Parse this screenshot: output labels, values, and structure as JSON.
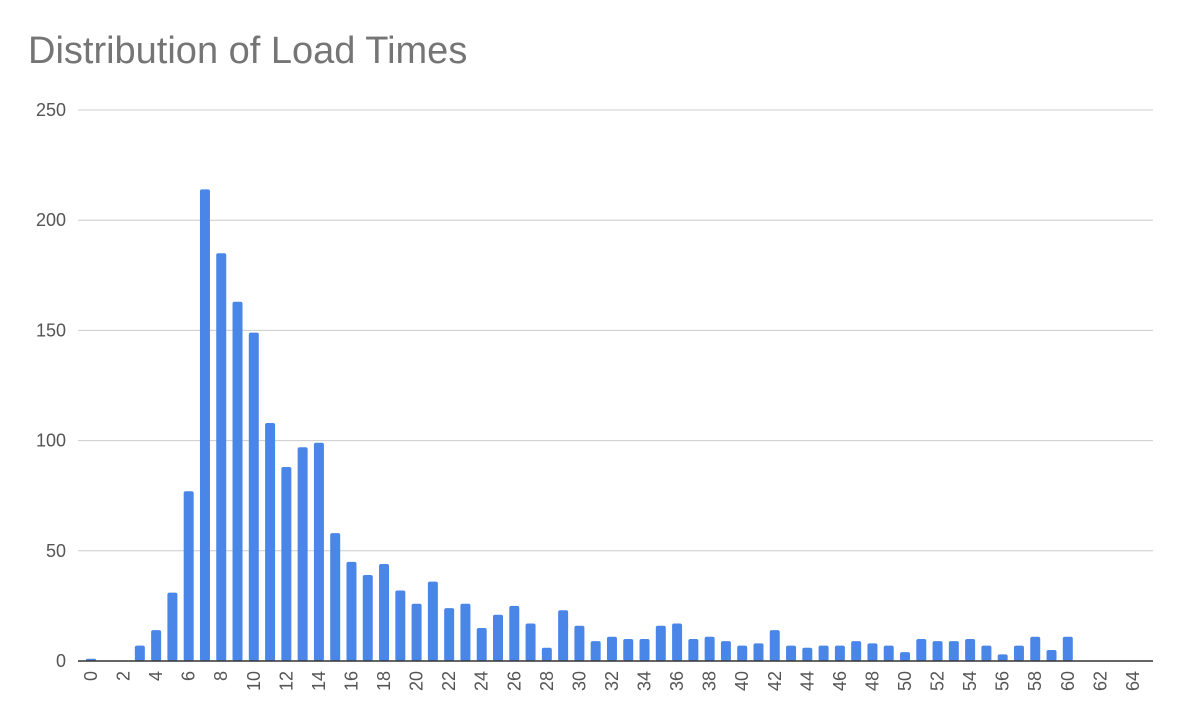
{
  "chart_data": {
    "type": "bar",
    "title": "Distribution of Load Times",
    "xlabel": "",
    "ylabel": "",
    "x": [
      0,
      1,
      2,
      3,
      4,
      5,
      6,
      7,
      8,
      9,
      10,
      11,
      12,
      13,
      14,
      15,
      16,
      17,
      18,
      19,
      20,
      21,
      22,
      23,
      24,
      25,
      26,
      27,
      28,
      29,
      30,
      31,
      32,
      33,
      34,
      35,
      36,
      37,
      38,
      39,
      40,
      41,
      42,
      43,
      44,
      45,
      46,
      47,
      48,
      49,
      50,
      51,
      52,
      53,
      54,
      55,
      56,
      57,
      58,
      59,
      60,
      61,
      62,
      63,
      64,
      65
    ],
    "values": [
      1,
      0,
      0,
      7,
      14,
      31,
      77,
      214,
      185,
      163,
      149,
      108,
      88,
      97,
      99,
      58,
      45,
      39,
      44,
      32,
      26,
      36,
      24,
      26,
      15,
      21,
      25,
      17,
      6,
      23,
      16,
      9,
      11,
      10,
      10,
      16,
      17,
      10,
      11,
      9,
      7,
      8,
      14,
      7,
      6,
      7,
      7,
      9,
      8,
      7,
      4,
      10,
      9,
      9,
      10,
      7,
      3,
      7,
      11,
      5,
      11,
      0,
      0,
      0,
      0,
      0
    ],
    "x_tick_labels": [
      "0",
      "2",
      "4",
      "6",
      "8",
      "10",
      "12",
      "14",
      "16",
      "18",
      "20",
      "22",
      "24",
      "26",
      "28",
      "30",
      "32",
      "34",
      "36",
      "38",
      "40",
      "42",
      "44",
      "46",
      "48",
      "50",
      "52",
      "54",
      "56",
      "58",
      "60",
      "62",
      "64"
    ],
    "y_ticks": [
      "0",
      "50",
      "100",
      "150",
      "200",
      "250"
    ],
    "ylim": [
      0,
      250
    ],
    "xlim": [
      0,
      65
    ],
    "grid": true,
    "legend": "none",
    "colors": {
      "bar": "#4a86e8",
      "grid": "#cccccc",
      "axis": "#333333",
      "title": "#757575",
      "tick_text": "#555555"
    }
  }
}
